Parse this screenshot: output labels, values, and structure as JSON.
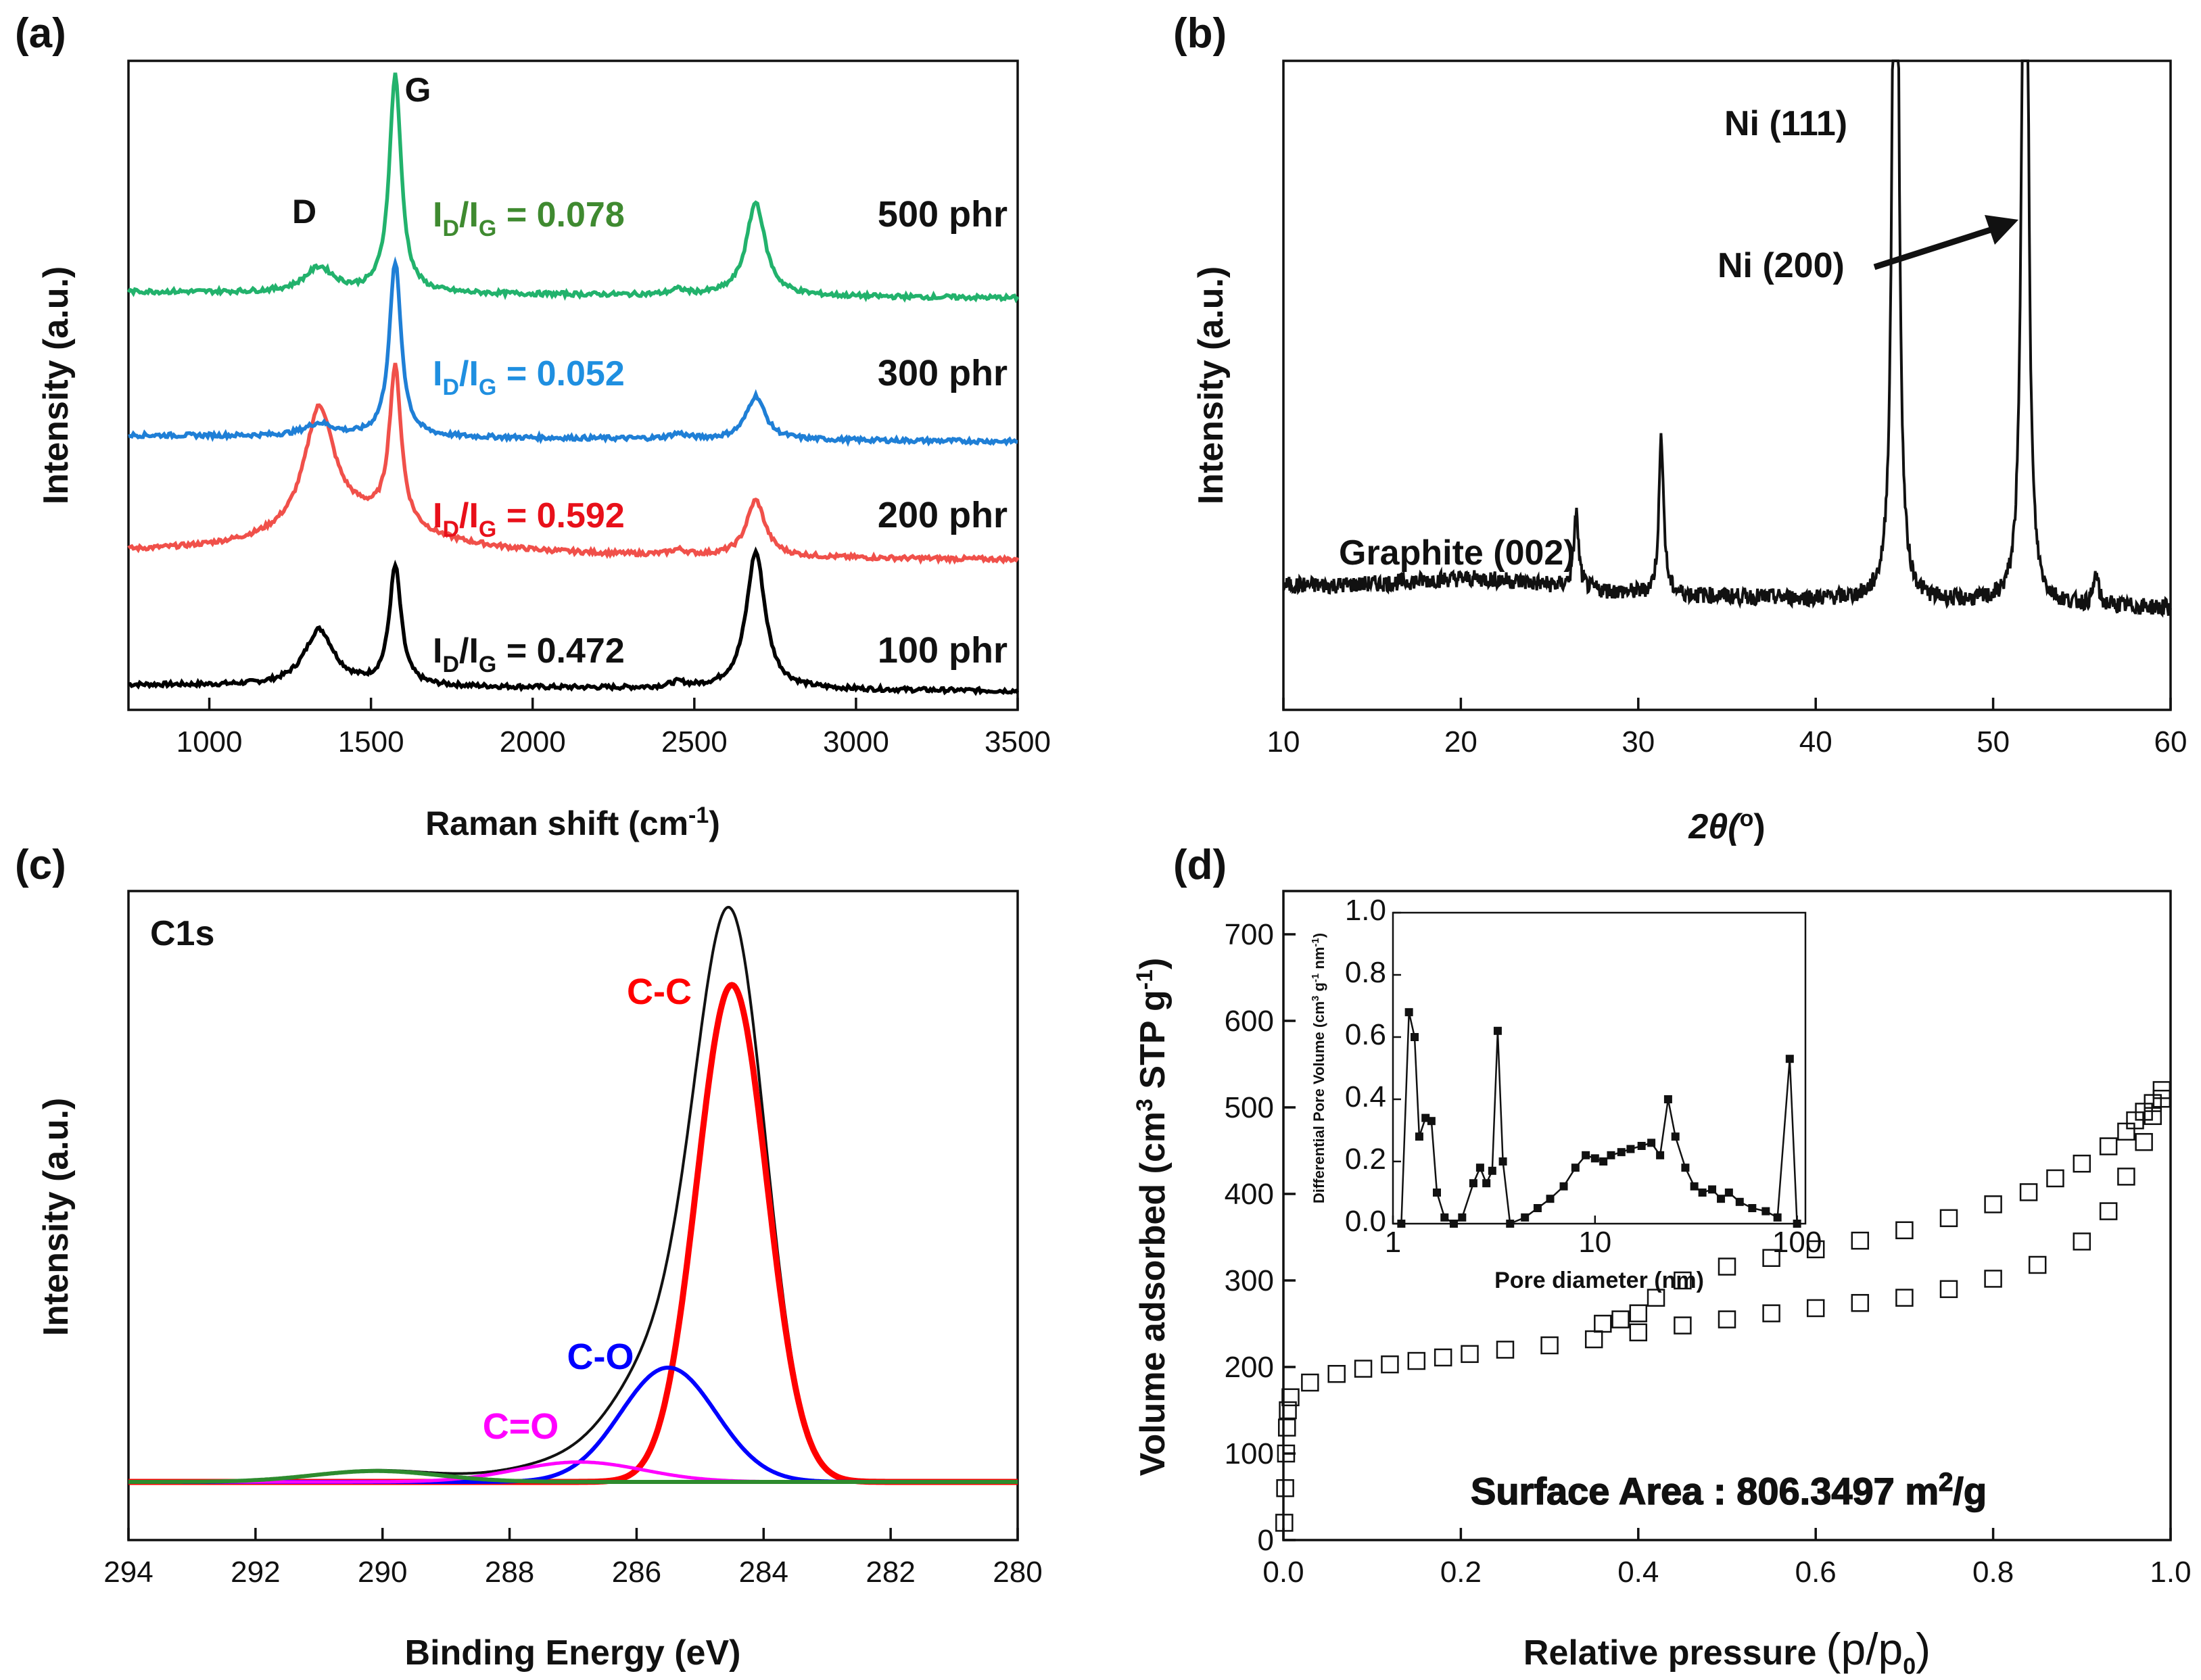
{
  "chart_data": [
    {
      "panel": "(a)",
      "type": "line",
      "xlabel": "Raman shift (cm",
      "xlabel_sup": "-1",
      "xlabel_end": ")",
      "ylabel": "Intensity (a.u.)",
      "xlim": [
        750,
        3500
      ],
      "xticks": [
        1000,
        1500,
        2000,
        2500,
        3000,
        3500
      ],
      "peak_labels": [
        "D",
        "G"
      ],
      "series": [
        {
          "name": "100 phr",
          "color": "#000000",
          "ratio": "= 0.472",
          "base": 0.2,
          "D": 0.45,
          "G": 0.95,
          "twoD": 1.1
        },
        {
          "name": "200 phr",
          "color": "#f0504a",
          "ratio": "= 0.592",
          "base": 1.25,
          "D": 0.95,
          "G": 1.25,
          "twoD": 0.45
        },
        {
          "name": "300 phr",
          "color": "#1f7fd6",
          "ratio": "= 0.052",
          "base": 2.2,
          "D": 0.1,
          "G": 1.4,
          "twoD": 0.35
        },
        {
          "name": "500 phr",
          "color": "#22b26c",
          "ratio": "= 0.078",
          "base": 3.35,
          "D": 0.2,
          "G": 1.75,
          "twoD": 0.75
        }
      ],
      "ratio_colors": [
        "#111111",
        "#e8101a",
        "#1f8fe0",
        "#3f8a30"
      ]
    },
    {
      "panel": "(b)",
      "type": "line",
      "xlabel": "2θ(",
      "xlabel_sup": "o",
      "xlabel_end": ")",
      "ylabel": "Intensity (a.u.)",
      "xlim": [
        10,
        60
      ],
      "xticks": [
        10,
        20,
        30,
        40,
        50,
        60
      ],
      "annotations": [
        "Graphite (002)",
        "Ni (111)",
        "Ni (200)"
      ],
      "peaks": [
        {
          "x": 26.5,
          "h": 0.2
        },
        {
          "x": 31.3,
          "h": 0.42
        },
        {
          "x": 44.5,
          "h": 3.2
        },
        {
          "x": 51.8,
          "h": 3.2
        },
        {
          "x": 55.8,
          "h": 0.08
        }
      ]
    },
    {
      "panel": "(c)",
      "type": "line",
      "title": "C1s",
      "xlabel": "Binding Energy (eV)",
      "ylabel": "Intensity (a.u.)",
      "xlim": [
        294,
        280
      ],
      "xticks": [
        294,
        292,
        290,
        288,
        286,
        284,
        282,
        280
      ],
      "series": [
        {
          "name": "C-C",
          "center": 284.5,
          "height": 1.0,
          "sigma": 0.55,
          "color": "#ff0000"
        },
        {
          "name": "C-O",
          "center": 285.5,
          "height": 0.23,
          "sigma": 0.75,
          "color": "#0000ff"
        },
        {
          "name": "C=O",
          "center": 286.9,
          "height": 0.04,
          "sigma": 1.0,
          "color": "#ff00ff"
        },
        {
          "name": "",
          "center": 290.1,
          "height": 0.022,
          "sigma": 1.0,
          "color": "#2e8b2e"
        }
      ]
    },
    {
      "panel": "(d)",
      "type": "scatter",
      "xlabel": "Relative pressure",
      "xlabel_paren": "(p/p",
      "xlabel_sub": "0",
      "ylabel": "Volume adsorbed (cm",
      "ylabel_sup": "3",
      "ylabel_mid": " STP g",
      "ylabel_sup2": "-1",
      "ylabel_end": ")",
      "xlim": [
        0,
        1.0
      ],
      "ylim": [
        0,
        750
      ],
      "xticks": [
        0.0,
        0.2,
        0.4,
        0.6,
        0.8,
        1.0
      ],
      "yticks": [
        0,
        100,
        200,
        300,
        400,
        500,
        600,
        700
      ],
      "annotation": "Surface Area : 806.3497 m",
      "annotation_sup": "2",
      "annotation_end": "/g",
      "adsorption": [
        [
          0.001,
          20
        ],
        [
          0.002,
          60
        ],
        [
          0.003,
          100
        ],
        [
          0.004,
          130
        ],
        [
          0.005,
          150
        ],
        [
          0.008,
          165
        ],
        [
          0.03,
          182
        ],
        [
          0.06,
          192
        ],
        [
          0.09,
          198
        ],
        [
          0.12,
          203
        ],
        [
          0.15,
          207
        ],
        [
          0.18,
          211
        ],
        [
          0.21,
          215
        ],
        [
          0.25,
          220
        ],
        [
          0.3,
          225
        ],
        [
          0.35,
          232
        ],
        [
          0.4,
          240
        ],
        [
          0.45,
          248
        ],
        [
          0.5,
          255
        ],
        [
          0.55,
          262
        ],
        [
          0.6,
          268
        ],
        [
          0.65,
          274
        ],
        [
          0.7,
          280
        ],
        [
          0.75,
          290
        ],
        [
          0.8,
          302
        ],
        [
          0.85,
          318
        ],
        [
          0.9,
          345
        ],
        [
          0.93,
          380
        ],
        [
          0.95,
          420
        ],
        [
          0.97,
          460
        ],
        [
          0.98,
          490
        ],
        [
          0.99,
          510
        ]
      ],
      "desorption": [
        [
          0.99,
          520
        ],
        [
          0.98,
          505
        ],
        [
          0.97,
          495
        ],
        [
          0.96,
          485
        ],
        [
          0.95,
          472
        ],
        [
          0.93,
          455
        ],
        [
          0.9,
          435
        ],
        [
          0.87,
          418
        ],
        [
          0.84,
          402
        ],
        [
          0.8,
          388
        ],
        [
          0.75,
          372
        ],
        [
          0.7,
          358
        ],
        [
          0.65,
          346
        ],
        [
          0.6,
          336
        ],
        [
          0.55,
          326
        ],
        [
          0.5,
          316
        ],
        [
          0.45,
          300
        ],
        [
          0.42,
          280
        ],
        [
          0.4,
          262
        ],
        [
          0.38,
          255
        ],
        [
          0.36,
          250
        ]
      ],
      "inset": {
        "xlabel": "Pore diameter (nm)",
        "ylabel": "Differential Pore Volume (cm",
        "ylabel_sup": "3",
        "ylabel_mid": " g",
        "ylabel_sup2": "-1",
        "ylabel_mid2": " nm",
        "ylabel_sup3": "-1",
        "ylabel_end": ")",
        "xlim": [
          1,
          110
        ],
        "ylim": [
          0,
          1.0
        ],
        "xticks": [
          1,
          10,
          100
        ],
        "yticks": [
          0.0,
          0.2,
          0.4,
          0.6,
          0.8,
          1.0
        ],
        "points": [
          [
            1.1,
            0.0
          ],
          [
            1.2,
            0.68
          ],
          [
            1.28,
            0.6
          ],
          [
            1.35,
            0.28
          ],
          [
            1.45,
            0.34
          ],
          [
            1.55,
            0.33
          ],
          [
            1.65,
            0.1
          ],
          [
            1.8,
            0.02
          ],
          [
            2.0,
            0.0
          ],
          [
            2.2,
            0.02
          ],
          [
            2.5,
            0.13
          ],
          [
            2.7,
            0.18
          ],
          [
            2.9,
            0.13
          ],
          [
            3.1,
            0.17
          ],
          [
            3.3,
            0.62
          ],
          [
            3.5,
            0.2
          ],
          [
            3.8,
            0.0
          ],
          [
            4.5,
            0.02
          ],
          [
            5.2,
            0.05
          ],
          [
            6.0,
            0.08
          ],
          [
            7.0,
            0.12
          ],
          [
            8.0,
            0.18
          ],
          [
            9.0,
            0.22
          ],
          [
            10,
            0.21
          ],
          [
            11,
            0.2
          ],
          [
            12,
            0.22
          ],
          [
            13.5,
            0.23
          ],
          [
            15,
            0.24
          ],
          [
            17,
            0.25
          ],
          [
            19,
            0.26
          ],
          [
            21,
            0.22
          ],
          [
            23,
            0.4
          ],
          [
            25,
            0.28
          ],
          [
            28,
            0.18
          ],
          [
            31,
            0.12
          ],
          [
            34,
            0.1
          ],
          [
            38,
            0.11
          ],
          [
            42,
            0.08
          ],
          [
            46,
            0.1
          ],
          [
            52,
            0.07
          ],
          [
            60,
            0.05
          ],
          [
            70,
            0.04
          ],
          [
            80,
            0.02
          ],
          [
            92,
            0.53
          ],
          [
            100,
            0.0
          ]
        ]
      }
    }
  ]
}
